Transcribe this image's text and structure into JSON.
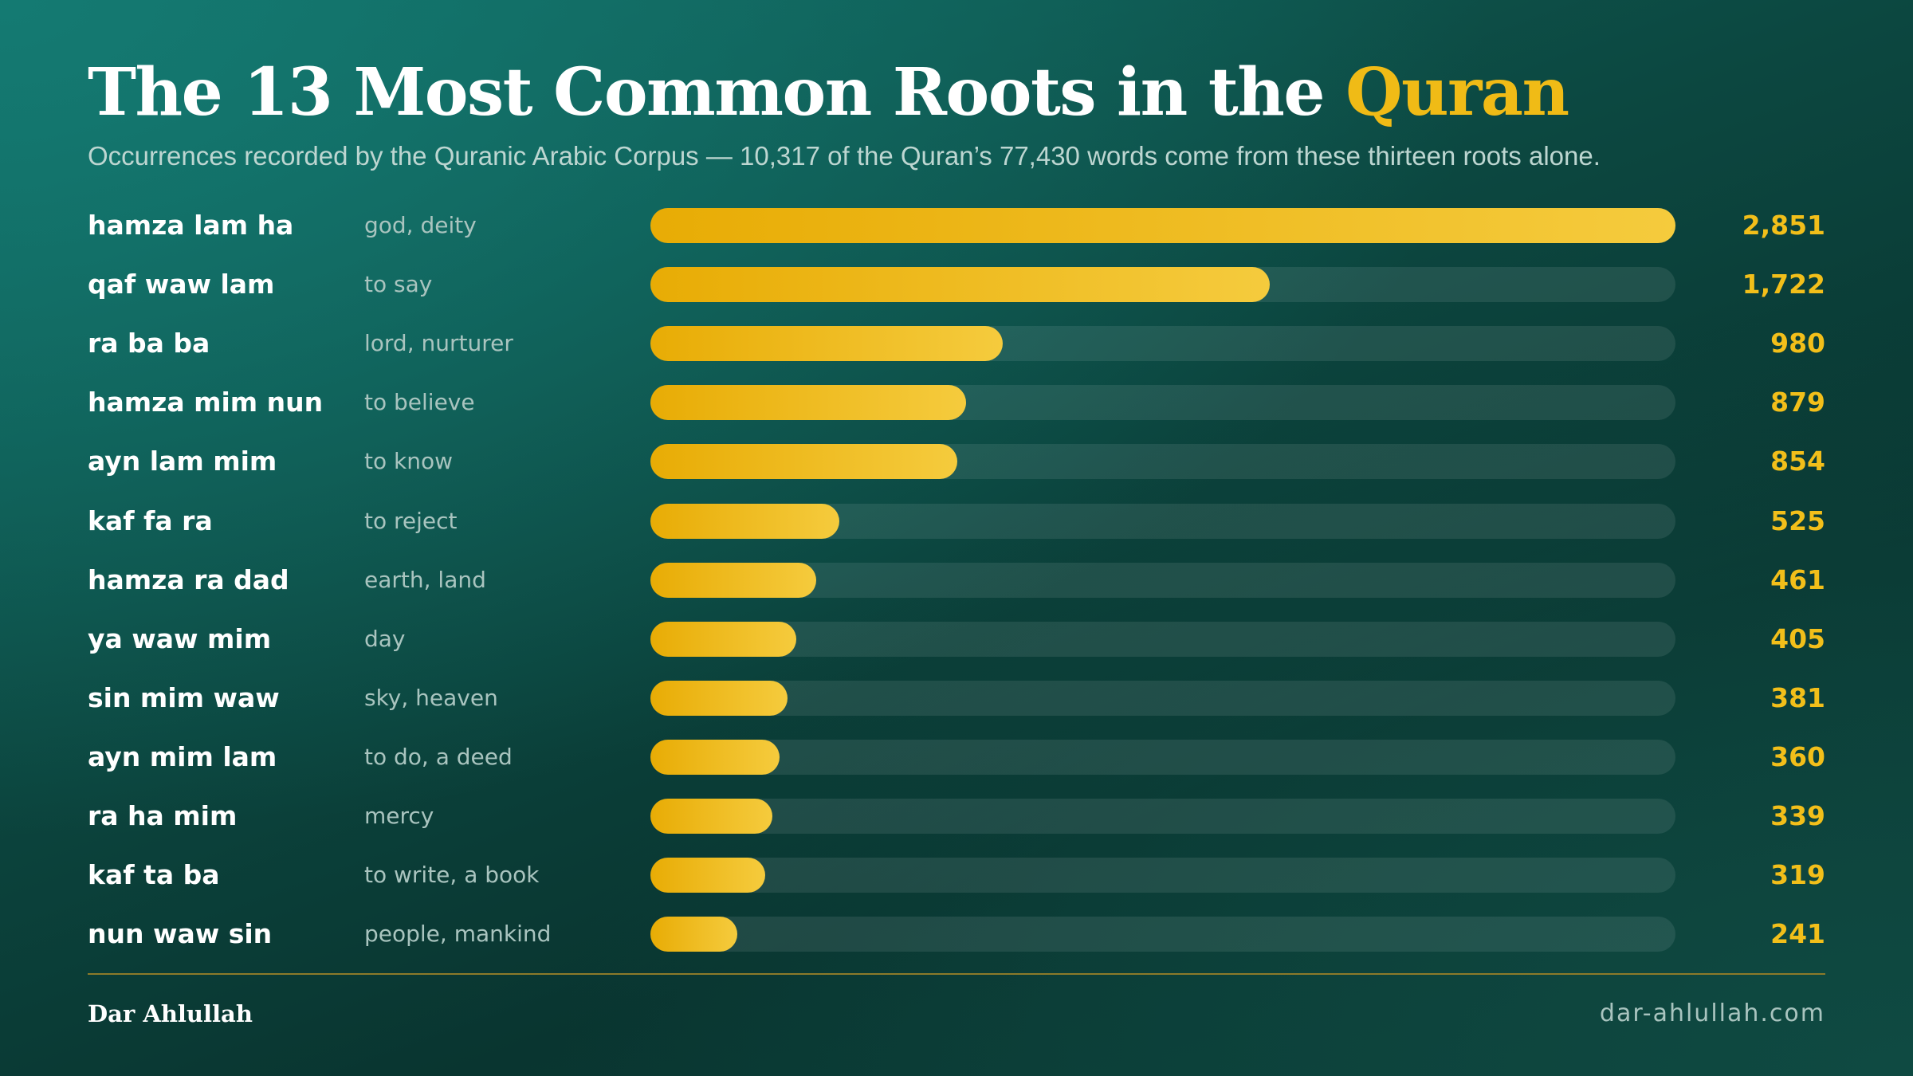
{
  "header": {
    "title_main": "The 13 Most Common Roots in the ",
    "title_accent": "Quran",
    "subtitle": "Occurrences recorded by the Quranic Arabic Corpus — 10,317 of the Quran’s 77,430 words come from these thirteen roots alone."
  },
  "colors": {
    "accent": "#f0bb16",
    "bar_start": "#e8ac05",
    "bar_end": "#f5cb3d",
    "background": "#0c4740"
  },
  "chart_data": {
    "type": "bar",
    "orientation": "horizontal",
    "title": "The 13 Most Common Roots in the Quran",
    "subtitle": "Occurrences recorded by the Quranic Arabic Corpus — 10,317 of the Quran’s 77,430 words come from these thirteen roots alone.",
    "xlim": [
      0,
      2851
    ],
    "grid": false,
    "categories": [
      "hamza lam ha",
      "qaf waw lam",
      "ra ba ba",
      "hamza mim nun",
      "ayn lam mim",
      "kaf fa ra",
      "hamza ra dad",
      "ya waw mim",
      "sin mim waw",
      "ayn mim lam",
      "ra ha mim",
      "kaf ta ba",
      "nun waw sin"
    ],
    "meanings": [
      "god, deity",
      "to say",
      "lord, nurturer",
      "to believe",
      "to know",
      "to reject",
      "earth, land",
      "day",
      "sky, heaven",
      "to do, a deed",
      "mercy",
      "to write, a book",
      "people, mankind"
    ],
    "values": [
      2851,
      1722,
      980,
      879,
      854,
      525,
      461,
      405,
      381,
      360,
      339,
      319,
      241
    ],
    "value_labels": [
      "2,851",
      "1,722",
      "980",
      "879",
      "854",
      "525",
      "461",
      "405",
      "381",
      "360",
      "339",
      "319",
      "241"
    ]
  },
  "footer": {
    "brand": "Dar Ahlullah",
    "site": "dar-ahlullah.com"
  }
}
